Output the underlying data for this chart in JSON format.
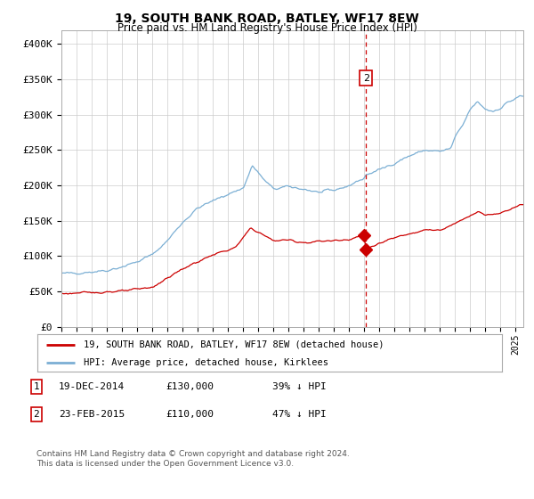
{
  "title": "19, SOUTH BANK ROAD, BATLEY, WF17 8EW",
  "subtitle": "Price paid vs. HM Land Registry's House Price Index (HPI)",
  "title_fontsize": 10,
  "subtitle_fontsize": 8.5,
  "ylabel_ticks": [
    "£0",
    "£50K",
    "£100K",
    "£150K",
    "£200K",
    "£250K",
    "£300K",
    "£350K",
    "£400K"
  ],
  "ytick_vals": [
    0,
    50000,
    100000,
    150000,
    200000,
    250000,
    300000,
    350000,
    400000
  ],
  "ylim": [
    0,
    420000
  ],
  "xlim_start": 1995.0,
  "xlim_end": 2025.5,
  "hpi_color": "#7bafd4",
  "price_color": "#cc0000",
  "dashed_line_color": "#cc0000",
  "marker_color": "#cc0000",
  "transaction1_date": 2014.96,
  "transaction1_price": 130000,
  "transaction2_date": 2015.12,
  "transaction2_price": 110000,
  "legend_house_label": "19, SOUTH BANK ROAD, BATLEY, WF17 8EW (detached house)",
  "legend_hpi_label": "HPI: Average price, detached house, Kirklees",
  "table_rows": [
    {
      "num": "1",
      "date": "19-DEC-2014",
      "price": "£130,000",
      "note": "39% ↓ HPI"
    },
    {
      "num": "2",
      "date": "23-FEB-2015",
      "price": "£110,000",
      "note": "47% ↓ HPI"
    }
  ],
  "footer": "Contains HM Land Registry data © Crown copyright and database right 2024.\nThis data is licensed under the Open Government Licence v3.0.",
  "background_color": "#ffffff",
  "grid_color": "#cccccc"
}
